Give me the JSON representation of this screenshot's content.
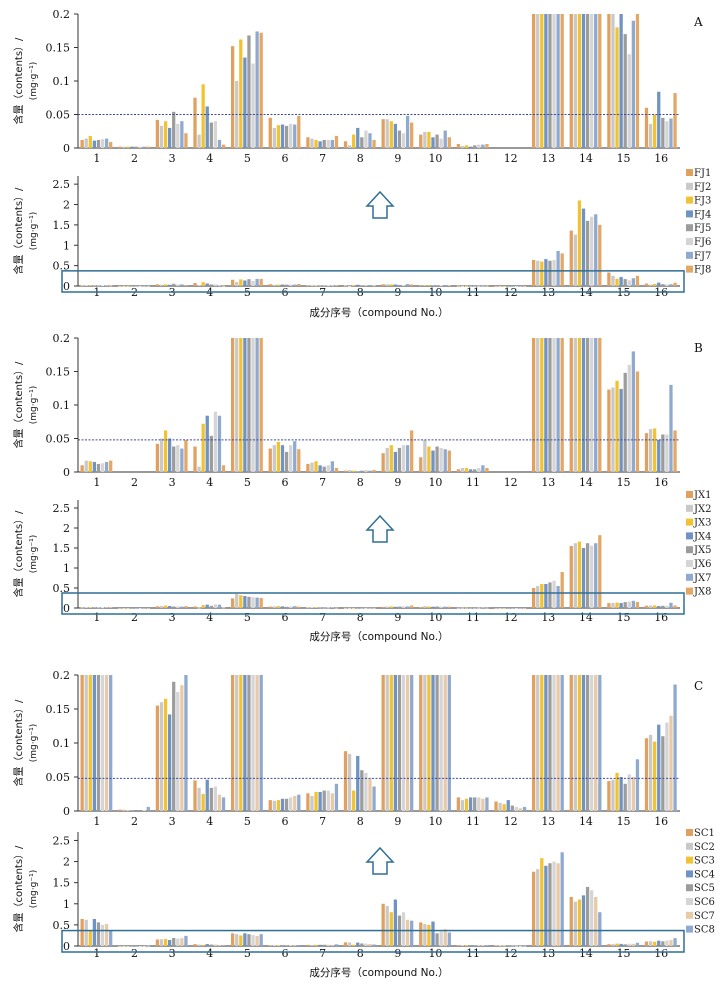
{
  "chart_data": [
    {
      "type": "bar",
      "panel": "A",
      "zoom_view": {
        "ylim": [
          0,
          0.2
        ],
        "yticks": [
          "0",
          "0.05",
          "0.1",
          "0.15",
          "0.2"
        ],
        "threshold": 0.05,
        "ylabel": "含量（contents）/",
        "yunit": "(mg·g⁻¹)"
      },
      "full_view": {
        "ylim": [
          0,
          2.7
        ],
        "yticks": [
          "0",
          "0.5",
          "1",
          "1.5",
          "2",
          "2.5"
        ],
        "ylabel": "含量（contents）/",
        "yunit": "(mg·g⁻¹)",
        "xlabel": "成分序号（compound No.）"
      },
      "categories": [
        "1",
        "2",
        "3",
        "4",
        "5",
        "6",
        "7",
        "8",
        "9",
        "10",
        "11",
        "12",
        "13",
        "14",
        "15",
        "16"
      ],
      "series": [
        {
          "name": "FJ1",
          "color": "#e0a060",
          "values": [
            0.012,
            0.002,
            0.042,
            0.075,
            0.152,
            0.045,
            0.016,
            0.01,
            0.043,
            0.02,
            0.006,
            0.0,
            0.64,
            1.36,
            0.33,
            0.06
          ]
        },
        {
          "name": "FJ2",
          "color": "#c9c9c9",
          "values": [
            0.014,
            0.002,
            0.033,
            0.02,
            0.1,
            0.03,
            0.014,
            0.004,
            0.043,
            0.024,
            0.003,
            0.0,
            0.62,
            1.26,
            0.25,
            0.036
          ]
        },
        {
          "name": "FJ3",
          "color": "#f1c232",
          "values": [
            0.018,
            0.002,
            0.04,
            0.095,
            0.162,
            0.034,
            0.012,
            0.02,
            0.04,
            0.024,
            0.004,
            0.0,
            0.6,
            2.1,
            0.18,
            0.05
          ]
        },
        {
          "name": "FJ4",
          "color": "#6f93c3",
          "values": [
            0.011,
            0.002,
            0.03,
            0.062,
            0.135,
            0.035,
            0.01,
            0.03,
            0.036,
            0.016,
            0.002,
            0.0,
            0.66,
            1.9,
            0.22,
            0.084
          ]
        },
        {
          "name": "FJ5",
          "color": "#9c9c9c",
          "values": [
            0.012,
            0.002,
            0.054,
            0.038,
            0.168,
            0.033,
            0.012,
            0.016,
            0.026,
            0.02,
            0.004,
            0.0,
            0.62,
            1.6,
            0.17,
            0.045
          ]
        },
        {
          "name": "FJ6",
          "color": "#d5d5d5",
          "values": [
            0.013,
            0.002,
            0.036,
            0.04,
            0.126,
            0.036,
            0.012,
            0.026,
            0.022,
            0.014,
            0.005,
            0.0,
            0.64,
            1.7,
            0.14,
            0.04
          ]
        },
        {
          "name": "FJ7",
          "color": "#8fa9cf",
          "values": [
            0.014,
            0.002,
            0.04,
            0.012,
            0.174,
            0.035,
            0.012,
            0.022,
            0.048,
            0.026,
            0.005,
            0.0,
            0.86,
            1.76,
            0.19,
            0.044
          ]
        },
        {
          "name": "FJ8",
          "color": "#e3a766",
          "values": [
            0.009,
            0.002,
            0.022,
            0.005,
            0.172,
            0.048,
            0.018,
            0.012,
            0.038,
            0.016,
            0.006,
            0.0,
            0.8,
            1.5,
            0.25,
            0.082
          ]
        }
      ]
    },
    {
      "type": "bar",
      "panel": "B",
      "zoom_view": {
        "ylim": [
          0,
          0.2
        ],
        "yticks": [
          "0",
          "0.05",
          "0.1",
          "0.15",
          "0.2"
        ],
        "threshold": 0.048,
        "ylabel": "含量（contents）/",
        "yunit": "(mg·g⁻¹)"
      },
      "full_view": {
        "ylim": [
          0,
          2.7
        ],
        "yticks": [
          "0",
          "0.5",
          "1",
          "1.5",
          "2",
          "2.5"
        ],
        "ylabel": "含量（contents）/",
        "yunit": "(mg·g⁻¹)",
        "xlabel": "成分序号（compound No.）"
      },
      "categories": [
        "1",
        "2",
        "3",
        "4",
        "5",
        "6",
        "7",
        "8",
        "9",
        "10",
        "11",
        "12",
        "13",
        "14",
        "15",
        "16"
      ],
      "series": [
        {
          "name": "JX1",
          "color": "#e0a060",
          "values": [
            0.01,
            0.0,
            0.042,
            0.038,
            0.24,
            0.035,
            0.012,
            0.002,
            0.028,
            0.022,
            0.004,
            0.0,
            0.5,
            1.55,
            0.123,
            0.058
          ]
        },
        {
          "name": "JX2",
          "color": "#c9c9c9",
          "values": [
            0.017,
            0.0,
            0.05,
            0.008,
            0.35,
            0.04,
            0.014,
            0.003,
            0.036,
            0.048,
            0.006,
            0.0,
            0.55,
            1.62,
            0.126,
            0.064
          ]
        },
        {
          "name": "JX3",
          "color": "#f1c232",
          "values": [
            0.016,
            0.0,
            0.062,
            0.072,
            0.32,
            0.045,
            0.016,
            0.002,
            0.04,
            0.038,
            0.006,
            0.0,
            0.6,
            1.66,
            0.136,
            0.065
          ]
        },
        {
          "name": "JX4",
          "color": "#6f93c3",
          "values": [
            0.015,
            0.0,
            0.05,
            0.084,
            0.3,
            0.04,
            0.01,
            0.001,
            0.03,
            0.032,
            0.004,
            0.0,
            0.6,
            1.5,
            0.124,
            0.048
          ]
        },
        {
          "name": "JX5",
          "color": "#9c9c9c",
          "values": [
            0.012,
            0.0,
            0.038,
            0.054,
            0.28,
            0.03,
            0.008,
            0.002,
            0.036,
            0.038,
            0.004,
            0.0,
            0.64,
            1.62,
            0.148,
            0.056
          ]
        },
        {
          "name": "JX6",
          "color": "#d5d5d5",
          "values": [
            0.013,
            0.0,
            0.04,
            0.09,
            0.27,
            0.04,
            0.01,
            0.003,
            0.04,
            0.036,
            0.006,
            0.0,
            0.68,
            1.56,
            0.16,
            0.056
          ]
        },
        {
          "name": "JX7",
          "color": "#8fa9cf",
          "values": [
            0.015,
            0.0,
            0.035,
            0.084,
            0.26,
            0.046,
            0.016,
            0.002,
            0.04,
            0.034,
            0.01,
            0.0,
            0.55,
            1.62,
            0.18,
            0.13
          ]
        },
        {
          "name": "JX8",
          "color": "#e3a766",
          "values": [
            0.017,
            0.0,
            0.048,
            0.01,
            0.25,
            0.034,
            0.006,
            0.003,
            0.062,
            0.032,
            0.006,
            0.0,
            0.9,
            1.82,
            0.15,
            0.062
          ]
        }
      ]
    },
    {
      "type": "bar",
      "panel": "C",
      "zoom_view": {
        "ylim": [
          0,
          0.2
        ],
        "yticks": [
          "0",
          "0.05",
          "0.1",
          "0.15",
          "0.2"
        ],
        "threshold": 0.048,
        "ylabel": "含量（contents）/",
        "yunit": "(mg·g⁻¹)"
      },
      "full_view": {
        "ylim": [
          0,
          2.7
        ],
        "yticks": [
          "0",
          "0.5",
          "1",
          "1.5",
          "2",
          "2.5"
        ],
        "ylabel": "含量（contents）/",
        "yunit": "(mg·g⁻¹)",
        "xlabel": "成分序号（compound No.）"
      },
      "categories": [
        "1",
        "2",
        "3",
        "4",
        "5",
        "6",
        "7",
        "8",
        "9",
        "10",
        "11",
        "12",
        "13",
        "14",
        "15",
        "16"
      ],
      "series": [
        {
          "name": "SC1",
          "color": "#e0a060",
          "values": [
            0.64,
            0.002,
            0.155,
            0.045,
            0.3,
            0.016,
            0.026,
            0.088,
            1.0,
            0.56,
            0.02,
            0.014,
            1.76,
            1.16,
            0.044,
            0.107
          ]
        },
        {
          "name": "SC2",
          "color": "#c9c9c9",
          "values": [
            0.62,
            0.002,
            0.16,
            0.034,
            0.28,
            0.015,
            0.022,
            0.084,
            0.95,
            0.52,
            0.016,
            0.012,
            1.82,
            1.05,
            0.046,
            0.112
          ]
        },
        {
          "name": "SC3",
          "color": "#f1c232",
          "values": [
            0.36,
            0.001,
            0.165,
            0.025,
            0.25,
            0.016,
            0.028,
            0.03,
            0.8,
            0.5,
            0.018,
            0.01,
            2.08,
            1.1,
            0.056,
            0.102
          ]
        },
        {
          "name": "SC4",
          "color": "#6f93c3",
          "values": [
            0.64,
            0.001,
            0.142,
            0.046,
            0.3,
            0.018,
            0.028,
            0.081,
            1.1,
            0.58,
            0.02,
            0.016,
            1.9,
            1.2,
            0.05,
            0.127
          ]
        },
        {
          "name": "SC5",
          "color": "#9c9c9c",
          "values": [
            0.56,
            0.0,
            0.19,
            0.034,
            0.28,
            0.018,
            0.03,
            0.06,
            0.72,
            0.3,
            0.02,
            0.008,
            1.96,
            1.4,
            0.04,
            0.11
          ]
        },
        {
          "name": "SC6",
          "color": "#d5d5d5",
          "values": [
            0.5,
            0.0,
            0.175,
            0.036,
            0.26,
            0.02,
            0.03,
            0.056,
            0.8,
            0.34,
            0.02,
            0.006,
            2.0,
            1.32,
            0.054,
            0.13
          ]
        },
        {
          "name": "SC7",
          "color": "#e8c9a8",
          "values": [
            0.52,
            0.001,
            0.185,
            0.024,
            0.24,
            0.022,
            0.026,
            0.048,
            0.62,
            0.4,
            0.018,
            0.004,
            1.96,
            1.16,
            0.05,
            0.14
          ]
        },
        {
          "name": "SC8",
          "color": "#8fa9cf",
          "values": [
            0.36,
            0.006,
            0.24,
            0.02,
            0.28,
            0.024,
            0.04,
            0.036,
            0.6,
            0.32,
            0.02,
            0.006,
            2.22,
            0.8,
            0.076,
            0.186
          ]
        }
      ]
    }
  ]
}
